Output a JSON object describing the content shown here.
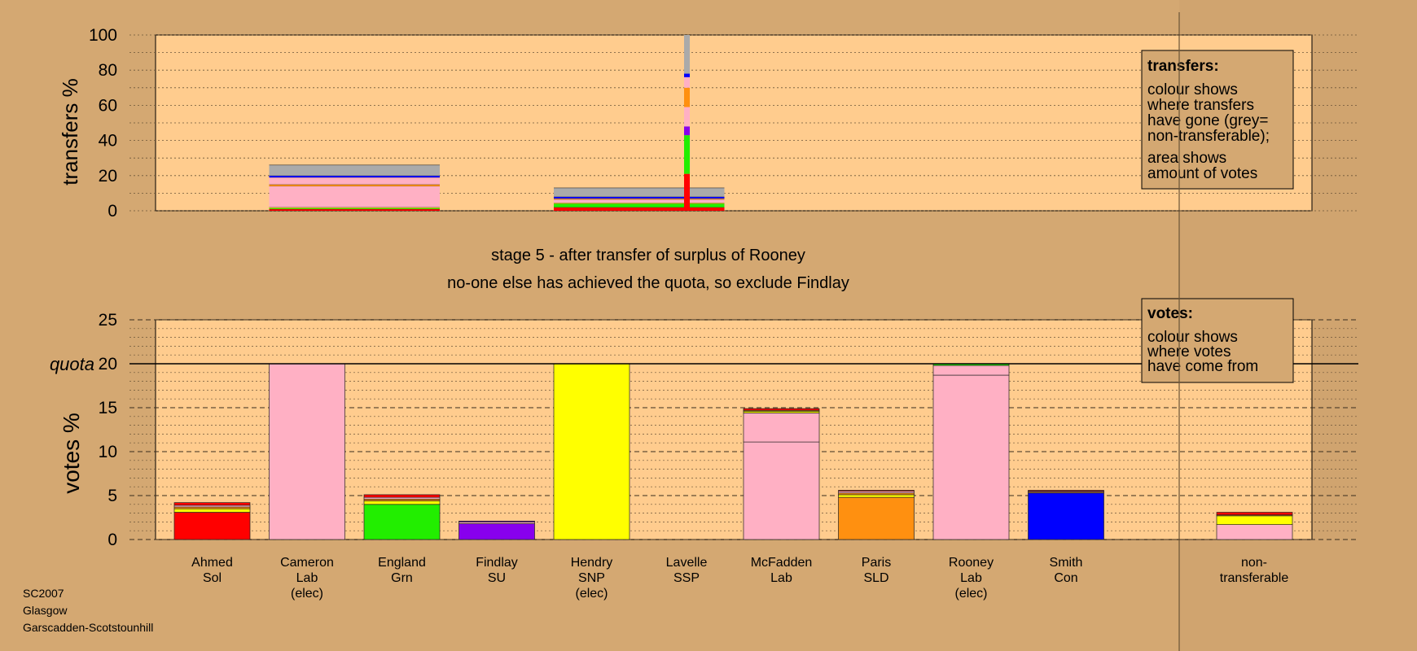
{
  "titles": {
    "line1": "stage 5 - after transfer of surplus of Rooney",
    "line2": "no-one else has achieved the quota, so exclude Findlay"
  },
  "footer": [
    "SC2007",
    "Glasgow",
    "Garscadden-Scotstounhill"
  ],
  "legends": {
    "transfers": {
      "title": "transfers:",
      "lines1": [
        "colour shows",
        "where transfers",
        "have gone (grey=",
        "non-transferable);"
      ],
      "lines2": [
        "area shows",
        "amount of votes"
      ]
    },
    "votes": {
      "title": "votes:",
      "lines": [
        "colour shows",
        "where votes",
        "have come from"
      ]
    }
  },
  "colors": {
    "background": "#D4A872",
    "plot_bg": "#FFCC8E",
    "Sol": "#FF0000",
    "Lab": "#FFB0C4",
    "Grn": "#22EE00",
    "SU": "#8800EE",
    "SNP": "#FFFF00",
    "SSP": "#FF3030",
    "SLD": "#FF9010",
    "Con": "#0000FF",
    "nontransferable": "#AAAAAA",
    "quota_line": "#000000"
  },
  "chart_data": [
    {
      "type": "bar",
      "id": "transfers",
      "ylabel": "transfers %",
      "ylim": [
        0,
        100
      ],
      "yticks": [
        0,
        20,
        40,
        60,
        80,
        100
      ],
      "grid": true,
      "bars": [
        {
          "candidate": "Cameron",
          "width_slot": [
            1,
            2
          ],
          "segments": [
            {
              "party": "Sol",
              "value": 1
            },
            {
              "party": "Grn",
              "value": 0.5
            },
            {
              "party": "SNP",
              "value": 0.5
            },
            {
              "party": "Lab",
              "value": 12
            },
            {
              "party": "SLD",
              "value": 1
            },
            {
              "party": "Lab",
              "value": 4
            },
            {
              "party": "Con",
              "value": 1
            },
            {
              "party": "nontransferable",
              "value": 6
            }
          ]
        },
        {
          "candidate": "Hendry",
          "width_slot": [
            4,
            5
          ],
          "segments": [
            {
              "party": "Sol",
              "value": 2
            },
            {
              "party": "Grn",
              "value": 2
            },
            {
              "party": "SNP",
              "value": 0.5
            },
            {
              "party": "Lab",
              "value": 2
            },
            {
              "party": "SLD",
              "value": 0.5
            },
            {
              "party": "Con",
              "value": 1
            },
            {
              "party": "nontransferable",
              "value": 5
            }
          ]
        },
        {
          "candidate": "Rooney",
          "width_slot": "thin",
          "segments": [
            {
              "party": "Sol",
              "value": 21
            },
            {
              "party": "Grn",
              "value": 22
            },
            {
              "party": "SU",
              "value": 5
            },
            {
              "party": "Lab",
              "value": 11
            },
            {
              "party": "SLD",
              "value": 11
            },
            {
              "party": "Lab",
              "value": 6
            },
            {
              "party": "Con",
              "value": 2
            },
            {
              "party": "nontransferable",
              "value": 22
            }
          ]
        }
      ]
    },
    {
      "type": "bar",
      "id": "votes",
      "ylabel": "votes %",
      "ylim": [
        0,
        25
      ],
      "yticks": [
        0,
        5,
        10,
        15,
        20,
        25
      ],
      "quota": 20,
      "quota_label": "quota",
      "categories": [
        {
          "name": "Ahmed",
          "party": "Sol",
          "elected": false
        },
        {
          "name": "Cameron",
          "party": "Lab",
          "elected": true
        },
        {
          "name": "England",
          "party": "Grn",
          "elected": false
        },
        {
          "name": "Findlay",
          "party": "SU",
          "elected": false
        },
        {
          "name": "Hendry",
          "party": "SNP",
          "elected": true
        },
        {
          "name": "Lavelle",
          "party": "SSP",
          "elected": false
        },
        {
          "name": "McFadden",
          "party": "Lab",
          "elected": false
        },
        {
          "name": "Paris",
          "party": "SLD",
          "elected": false
        },
        {
          "name": "Rooney",
          "party": "Lab",
          "elected": true
        },
        {
          "name": "Smith",
          "party": "Con",
          "elected": false
        }
      ],
      "elected_label": "(elec)",
      "nontransferable_label": [
        "non-",
        "transferable"
      ],
      "series": [
        {
          "candidate": "Ahmed",
          "segments": [
            {
              "party": "Sol",
              "value": 3.1
            },
            {
              "party": "SNP",
              "value": 0.4
            },
            {
              "party": "SLD",
              "value": 0.2
            },
            {
              "party": "Lab",
              "value": 0.2
            },
            {
              "party": "Sol",
              "value": 0.3
            }
          ]
        },
        {
          "candidate": "Cameron",
          "segments": [
            {
              "party": "Lab",
              "value": 20
            }
          ]
        },
        {
          "candidate": "England",
          "segments": [
            {
              "party": "Grn",
              "value": 4.0
            },
            {
              "party": "SNP",
              "value": 0.4
            },
            {
              "party": "SLD",
              "value": 0.2
            },
            {
              "party": "Lab",
              "value": 0.2
            },
            {
              "party": "Sol",
              "value": 0.3
            }
          ]
        },
        {
          "candidate": "Findlay",
          "segments": [
            {
              "party": "SU",
              "value": 1.8
            },
            {
              "party": "Lab",
              "value": 0.2
            },
            {
              "party": "SU",
              "value": 0.1
            }
          ]
        },
        {
          "candidate": "Hendry",
          "segments": [
            {
              "party": "SNP",
              "value": 20
            }
          ]
        },
        {
          "candidate": "Lavelle",
          "segments": []
        },
        {
          "candidate": "McFadden",
          "segments": [
            {
              "party": "Lab",
              "value": 11.1
            },
            {
              "party": "Lab",
              "value": 3.3
            },
            {
              "party": "SNP",
              "value": 0.2
            },
            {
              "party": "SLD",
              "value": 0.1
            },
            {
              "party": "Sol",
              "value": 0.2
            }
          ]
        },
        {
          "candidate": "Paris",
          "segments": [
            {
              "party": "SLD",
              "value": 4.8
            },
            {
              "party": "SNP",
              "value": 0.3
            },
            {
              "party": "SLD",
              "value": 0.2
            },
            {
              "party": "Lab",
              "value": 0.2
            },
            {
              "party": "Sol",
              "value": 0.1
            }
          ]
        },
        {
          "candidate": "Rooney",
          "segments": [
            {
              "party": "Lab",
              "value": 18.7
            },
            {
              "party": "Lab",
              "value": 1.1
            },
            {
              "party": "Grn",
              "value": 0.2
            }
          ]
        },
        {
          "candidate": "Smith",
          "segments": [
            {
              "party": "Con",
              "value": 5.3
            },
            {
              "party": "SLD",
              "value": 0.1
            },
            {
              "party": "Lab",
              "value": 0.1
            },
            {
              "party": "Sol",
              "value": 0.1
            }
          ]
        },
        {
          "candidate": "non-transferable",
          "segments": [
            {
              "party": "Lab",
              "value": 1.7
            },
            {
              "party": "SNP",
              "value": 1.0
            },
            {
              "party": "SLD",
              "value": 0.1
            },
            {
              "party": "Sol",
              "value": 0.3
            }
          ]
        }
      ]
    }
  ]
}
